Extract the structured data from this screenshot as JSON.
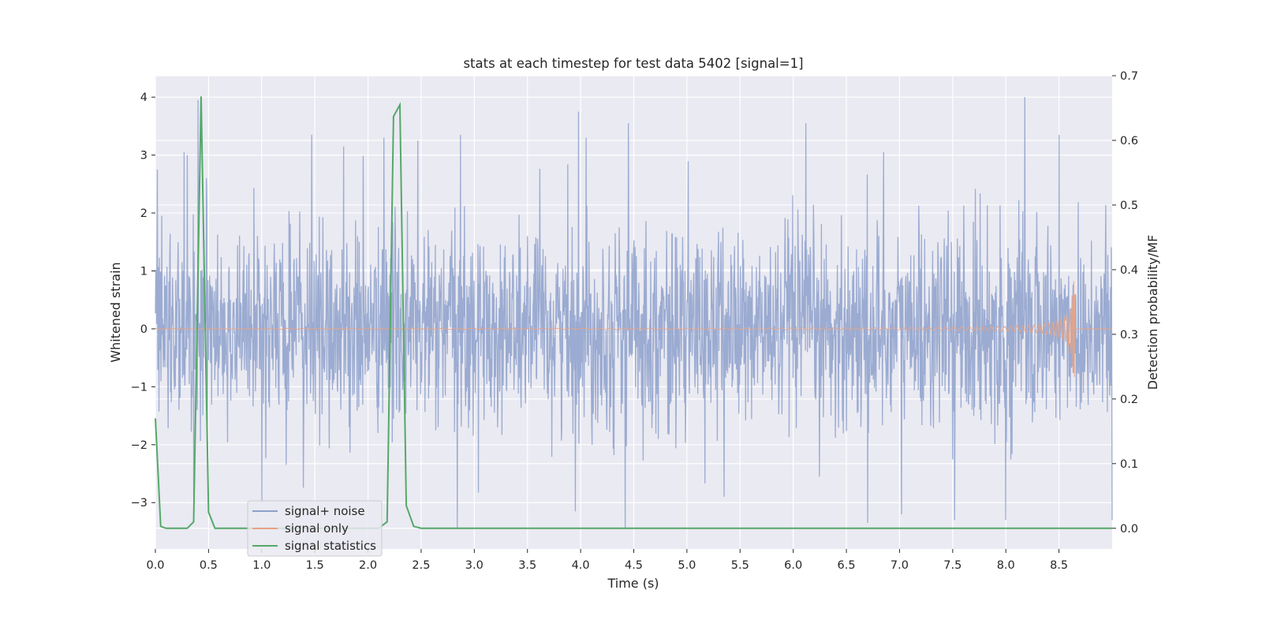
{
  "chart_data": {
    "type": "line",
    "title": "stats at each timestep for test data 5402 [signal=1]",
    "xlabel": "Time (s)",
    "ylabel_left": "Whitened strain",
    "ylabel_right": "Detection probability/MF",
    "xlim": [
      0.0,
      9.0
    ],
    "ylim_left": [
      -3.8,
      4.37
    ],
    "ylim_right": [
      -0.032,
      0.7
    ],
    "xticks": [
      "0.0",
      "0.5",
      "1.0",
      "1.5",
      "2.0",
      "2.5",
      "3.0",
      "3.5",
      "4.0",
      "4.5",
      "5.0",
      "5.5",
      "6.0",
      "6.5",
      "7.0",
      "7.5",
      "8.0",
      "8.5"
    ],
    "xtick_values": [
      0.0,
      0.5,
      1.0,
      1.5,
      2.0,
      2.5,
      3.0,
      3.5,
      4.0,
      4.5,
      5.0,
      5.5,
      6.0,
      6.5,
      7.0,
      7.5,
      8.0,
      8.5
    ],
    "yticks_left": [
      "−3",
      "−2",
      "−1",
      "0",
      "1",
      "2",
      "3",
      "4"
    ],
    "ytick_left_values": [
      -3,
      -2,
      -1,
      0,
      1,
      2,
      3,
      4
    ],
    "yticks_right": [
      "0.0",
      "0.1",
      "0.2",
      "0.3",
      "0.4",
      "0.5",
      "0.6",
      "0.7"
    ],
    "ytick_right_values": [
      0.0,
      0.1,
      0.2,
      0.3,
      0.4,
      0.5,
      0.6,
      0.7
    ],
    "grid": true,
    "legend_placement": "lower-left",
    "series": [
      {
        "name": "signal+ noise",
        "axis": "left",
        "color": "#8da0cb",
        "description_range": [
          -3.5,
          4.0
        ],
        "typical_std": 0.85,
        "peaks": [
          [
            0.02,
            2.75
          ],
          [
            0.27,
            3.05
          ],
          [
            0.3,
            3.0
          ],
          [
            0.4,
            3.95
          ],
          [
            0.48,
            2.6
          ],
          [
            1.47,
            3.35
          ],
          [
            1.77,
            3.15
          ],
          [
            2.15,
            3.3
          ],
          [
            2.47,
            3.25
          ],
          [
            2.87,
            3.35
          ],
          [
            3.98,
            3.75
          ],
          [
            4.05,
            3.3
          ],
          [
            4.45,
            3.55
          ],
          [
            6.12,
            3.55
          ],
          [
            6.85,
            3.05
          ],
          [
            8.18,
            4.0
          ],
          [
            8.5,
            3.35
          ],
          [
            2.84,
            -3.45
          ],
          [
            4.42,
            -3.45
          ],
          [
            6.7,
            -3.35
          ],
          [
            1.0,
            -3.0
          ],
          [
            0.36,
            -2.9
          ],
          [
            8.0,
            -3.3
          ],
          [
            3.95,
            -3.15
          ],
          [
            5.35,
            -2.9
          ],
          [
            7.02,
            -3.2
          ],
          [
            7.52,
            -3.3
          ],
          [
            9.0,
            -3.3
          ]
        ]
      },
      {
        "name": "signal only",
        "axis": "left",
        "color": "#e8a383",
        "chirp_end_time": 8.65,
        "chirp_peak_amplitude": 0.9
      },
      {
        "name": "signal statistics",
        "axis": "right",
        "color": "#55a868",
        "x": [
          0.0,
          0.05,
          0.1,
          0.15,
          0.2,
          0.25,
          0.3,
          0.36,
          0.43,
          0.5,
          0.56,
          0.6,
          0.7,
          0.8,
          0.9,
          1.0,
          1.1,
          1.2,
          1.3,
          1.4,
          1.5,
          1.6,
          1.7,
          1.8,
          1.9,
          2.0,
          2.1,
          2.18,
          2.24,
          2.3,
          2.36,
          2.43,
          2.5,
          2.6,
          2.8,
          3.0,
          4.0,
          5.0,
          6.0,
          7.0,
          8.0,
          9.0
        ],
        "y": [
          0.17,
          0.003,
          0.0,
          0.0,
          0.0,
          0.0,
          0.0,
          0.01,
          0.668,
          0.025,
          0.0,
          0.0,
          0.0,
          0.0,
          0.0,
          0.0,
          0.0,
          0.0,
          0.0,
          0.0,
          0.0,
          0.0,
          0.0,
          0.0,
          0.0,
          0.0,
          0.0,
          0.01,
          0.637,
          0.655,
          0.035,
          0.003,
          0.0,
          0.0,
          0.0,
          0.0,
          0.0,
          0.0,
          0.0,
          0.0,
          0.0,
          0.0
        ]
      }
    ]
  }
}
